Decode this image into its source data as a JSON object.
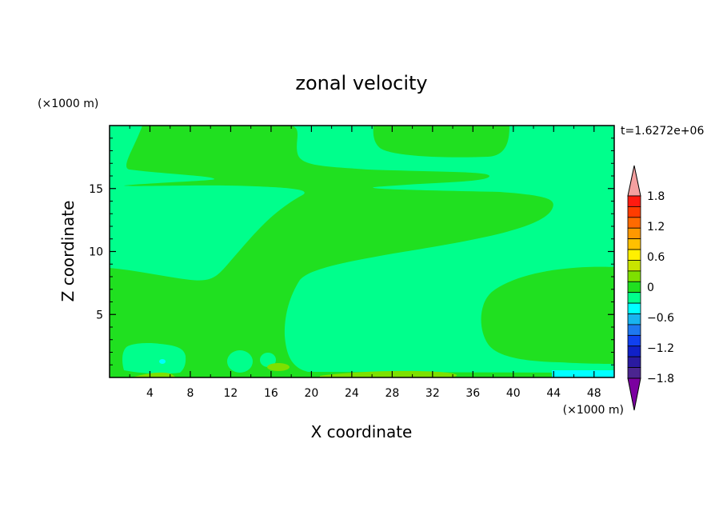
{
  "chart_data": {
    "type": "heatmap",
    "title": "zonal velocity",
    "xlabel": "X coordinate",
    "ylabel": "Z coordinate",
    "x_unit_label": "(×1000 m)",
    "y_unit_label": "(×1000 m)",
    "time_label": "t=1.6272e+06",
    "xlim": [
      0,
      50
    ],
    "ylim": [
      0,
      20
    ],
    "x_ticks": [
      4,
      8,
      12,
      16,
      20,
      24,
      28,
      32,
      36,
      40,
      44,
      48
    ],
    "y_ticks": [
      5,
      10,
      15
    ],
    "colorbar": {
      "min": -2.0,
      "max": 2.0,
      "step": 0.3,
      "tick_values": [
        1.8,
        1.2,
        0.6,
        0,
        -0.6,
        -1.2,
        -1.8
      ],
      "tick_labels": [
        "1.8",
        "1.2",
        "0.6",
        "0",
        "−0.6",
        "−1.2",
        "−1.8"
      ],
      "colors": [
        "#7b00a0",
        "#4b2590",
        "#2a1aa0",
        "#1020c8",
        "#1040f0",
        "#1e78f0",
        "#18b4f0",
        "#00ffff",
        "#00ff8c",
        "#20e020",
        "#7ee000",
        "#c8e400",
        "#fff000",
        "#ffc000",
        "#ff9800",
        "#ff6a00",
        "#ff3c00",
        "#ff1a10",
        "#f4a0a0"
      ]
    },
    "contour_levels": {
      "background": -0.15,
      "green": 0.15,
      "yellow_green": 0.45
    }
  }
}
